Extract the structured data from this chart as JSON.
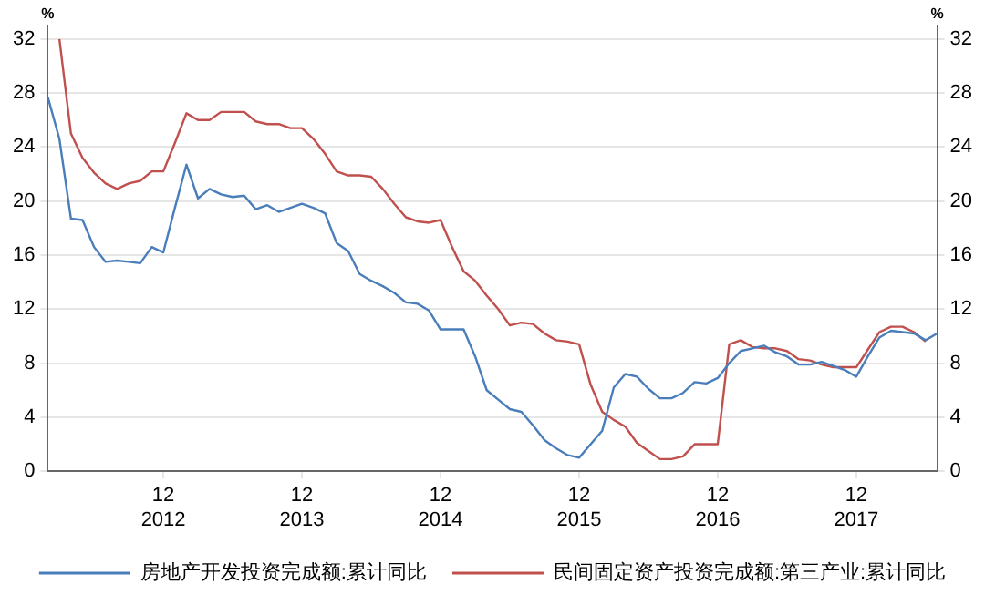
{
  "chart_data": {
    "type": "line",
    "x": [
      "2012-02",
      "2012-03",
      "2012-04",
      "2012-05",
      "2012-06",
      "2012-07",
      "2012-08",
      "2012-09",
      "2012-10",
      "2012-11",
      "2012-12",
      "2013-01",
      "2013-02",
      "2013-03",
      "2013-04",
      "2013-05",
      "2013-06",
      "2013-07",
      "2013-08",
      "2013-09",
      "2013-10",
      "2013-11",
      "2013-12",
      "2014-01",
      "2014-02",
      "2014-03",
      "2014-04",
      "2014-05",
      "2014-06",
      "2014-07",
      "2014-08",
      "2014-09",
      "2014-10",
      "2014-11",
      "2014-12",
      "2015-01",
      "2015-02",
      "2015-03",
      "2015-04",
      "2015-05",
      "2015-06",
      "2015-07",
      "2015-08",
      "2015-09",
      "2015-10",
      "2015-11",
      "2015-12",
      "2016-01",
      "2016-02",
      "2016-03",
      "2016-04",
      "2016-05",
      "2016-06",
      "2016-07",
      "2016-08",
      "2016-09",
      "2016-10",
      "2016-11",
      "2016-12",
      "2017-01",
      "2017-02",
      "2017-03",
      "2017-04",
      "2017-05",
      "2017-06",
      "2017-07",
      "2017-08",
      "2017-09",
      "2017-10",
      "2017-11",
      "2017-12",
      "2018-01",
      "2018-02",
      "2018-03",
      "2018-04",
      "2018-05",
      "2018-06",
      "2018-07"
    ],
    "series": [
      {
        "name": "房地产开发投资完成额:累计同比",
        "color": "#4a7ebb",
        "values": [
          27.7,
          24.6,
          18.7,
          18.6,
          16.6,
          15.5,
          15.6,
          15.5,
          15.4,
          16.6,
          16.2,
          19.5,
          22.7,
          20.2,
          20.9,
          20.5,
          20.3,
          20.4,
          19.4,
          19.7,
          19.2,
          19.5,
          19.8,
          19.5,
          19.1,
          16.9,
          16.3,
          14.6,
          14.1,
          13.7,
          13.2,
          12.5,
          12.4,
          11.9,
          10.5,
          10.5,
          10.5,
          8.5,
          6.0,
          5.3,
          4.6,
          4.4,
          3.4,
          2.3,
          1.7,
          1.2,
          1.0,
          2.0,
          3.0,
          6.2,
          7.2,
          7.0,
          6.1,
          5.4,
          5.4,
          5.8,
          6.6,
          6.5,
          6.9,
          8.0,
          8.9,
          9.1,
          9.3,
          8.8,
          8.5,
          7.9,
          7.9,
          8.1,
          7.8,
          7.5,
          7.0,
          8.5,
          9.9,
          10.4,
          10.3,
          10.2,
          9.7,
          10.2
        ]
      },
      {
        "name": "民间固定资产投资完成额:第三产业:累计同比",
        "color": "#c0504d",
        "values": [
          null,
          32.0,
          25.0,
          23.2,
          22.1,
          21.3,
          20.9,
          21.3,
          21.5,
          22.2,
          22.2,
          24.3,
          26.5,
          26.0,
          26.0,
          26.6,
          26.6,
          26.6,
          25.9,
          25.7,
          25.7,
          25.4,
          25.4,
          24.6,
          23.5,
          22.2,
          21.9,
          21.9,
          21.8,
          20.9,
          19.8,
          18.8,
          18.5,
          18.4,
          18.6,
          16.6,
          14.8,
          14.1,
          13.0,
          12.0,
          10.8,
          11.0,
          10.9,
          10.2,
          9.7,
          9.6,
          9.4,
          6.4,
          4.4,
          3.8,
          3.3,
          2.1,
          1.5,
          0.9,
          0.9,
          1.1,
          2.0,
          2.0,
          2.0,
          9.4,
          9.7,
          9.2,
          9.1,
          9.1,
          8.9,
          8.3,
          8.2,
          7.9,
          7.7,
          7.7,
          7.7,
          9.0,
          10.3,
          10.7,
          10.7,
          10.3,
          9.6,
          null
        ]
      }
    ],
    "xlim": [
      "2012-02",
      "2018-07"
    ],
    "xticks": [
      {
        "value": "2012-12",
        "label": "12\n2012"
      },
      {
        "value": "2013-12",
        "label": "12\n2013"
      },
      {
        "value": "2014-12",
        "label": "12\n2014"
      },
      {
        "value": "2015-12",
        "label": "12\n2015"
      },
      {
        "value": "2016-12",
        "label": "12\n2016"
      },
      {
        "value": "2017-12",
        "label": "12\n2017"
      }
    ],
    "ylim": [
      0,
      33
    ],
    "yticks": [
      0,
      4,
      8,
      12,
      16,
      20,
      24,
      28,
      32
    ],
    "y2lim": [
      0,
      33
    ],
    "y2ticks": [
      0,
      4,
      8,
      12,
      16,
      20,
      24,
      28,
      32
    ],
    "ylabel": "%",
    "y2label": "%",
    "grid": "y",
    "legend": "bottom",
    "marker": "none",
    "line_style": "solid"
  }
}
